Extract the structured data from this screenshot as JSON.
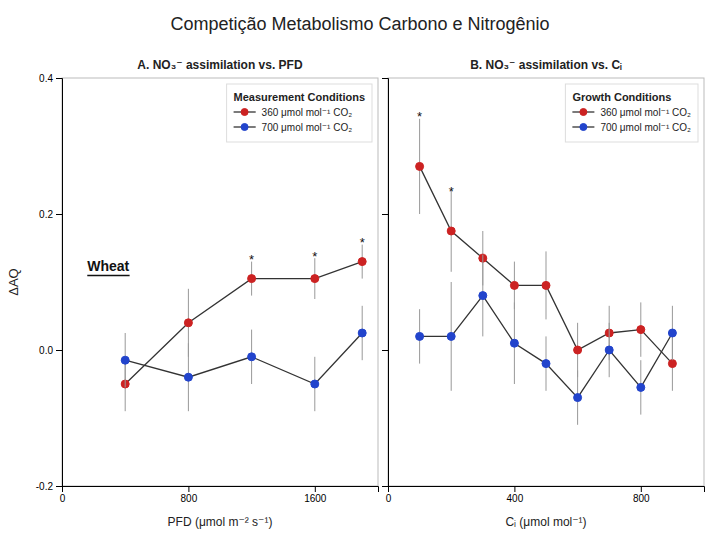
{
  "chart_data": [
    {
      "type": "line",
      "title": "Competição Metabolismo Carbono e Nitrogênio",
      "subtitle": "A. NO₃⁻ assimilation vs. PFD",
      "x_label": "PFD (μmol m⁻² s⁻¹)",
      "y_label": "ΔAQ",
      "xlim": [
        0,
        2000
      ],
      "xticks": [
        0,
        800,
        1600
      ],
      "ylim": [
        -0.2,
        0.4
      ],
      "yticks": [
        -0.2,
        {
          "value": 0,
          "label": "0.0"
        },
        0.2,
        0.4
      ],
      "marker": "circle",
      "grid": false,
      "legend": "upper right",
      "legend_title": "Measurement Conditions",
      "series": [
        {
          "name": "360 μmol mol⁻¹ CO₂",
          "color": "#cc2222",
          "x": [
            400,
            800,
            1200,
            1600,
            1900
          ],
          "values": [
            -0.05,
            0.04,
            0.105,
            0.105,
            0.13
          ],
          "errors": [
            0.04,
            0.05,
            0.025,
            0.03,
            0.025
          ]
        },
        {
          "name": "700 μmol mol⁻¹ CO₂",
          "color": "#2244cc",
          "x": [
            400,
            800,
            1200,
            1600,
            1900
          ],
          "values": [
            -0.015,
            -0.04,
            -0.01,
            -0.05,
            0.025
          ],
          "errors": [
            0.04,
            0.05,
            0.04,
            0.04,
            0.04
          ]
        }
      ],
      "annotations": [
        {
          "text": "*",
          "x": 1200,
          "y": 0.135
        },
        {
          "text": "*",
          "x": 1600,
          "y": 0.14
        },
        {
          "text": "*",
          "x": 1900,
          "y": 0.16
        },
        {
          "text": "Wheat"
        }
      ]
    },
    {
      "type": "line",
      "subtitle": "B. NO₃⁻ assimilation vs. Cᵢ",
      "x_label": "Cᵢ (μmol mol⁻¹)",
      "xlim": [
        0,
        1000
      ],
      "xticks": [
        0,
        400,
        800
      ],
      "ylim": [
        -0.2,
        0.4
      ],
      "yticks": [
        -0.2,
        {
          "value": 0,
          "label": "0.0"
        },
        0.2,
        0.4
      ],
      "tick_labels": "x",
      "marker": "circle",
      "grid": false,
      "legend": "upper right",
      "legend_title": "Growth Conditions",
      "series": [
        {
          "name": "360 μmol mol⁻¹ CO₂",
          "color": "#cc2222",
          "x": [
            100,
            200,
            300,
            400,
            500,
            600,
            700,
            800,
            900
          ],
          "values": [
            0.27,
            0.175,
            0.135,
            0.095,
            0.095,
            0.0,
            0.025,
            0.03,
            -0.02
          ],
          "errors": [
            0.07,
            0.06,
            0.04,
            0.035,
            0.05,
            0.04,
            0.04,
            0.04,
            0.04
          ]
        },
        {
          "name": "700 μmol mol⁻¹ CO₂",
          "color": "#2244cc",
          "x": [
            100,
            200,
            300,
            400,
            500,
            600,
            700,
            800,
            900
          ],
          "values": [
            0.02,
            0.02,
            0.08,
            0.01,
            -0.02,
            -0.07,
            0.0,
            -0.055,
            0.025
          ],
          "errors": [
            0.04,
            0.08,
            0.06,
            0.06,
            0.04,
            0.04,
            0.04,
            0.04,
            0.04
          ]
        }
      ],
      "annotations": [
        {
          "text": "*",
          "x": 100,
          "y": 0.345
        },
        {
          "text": "*",
          "x": 200,
          "y": 0.235
        }
      ]
    }
  ]
}
